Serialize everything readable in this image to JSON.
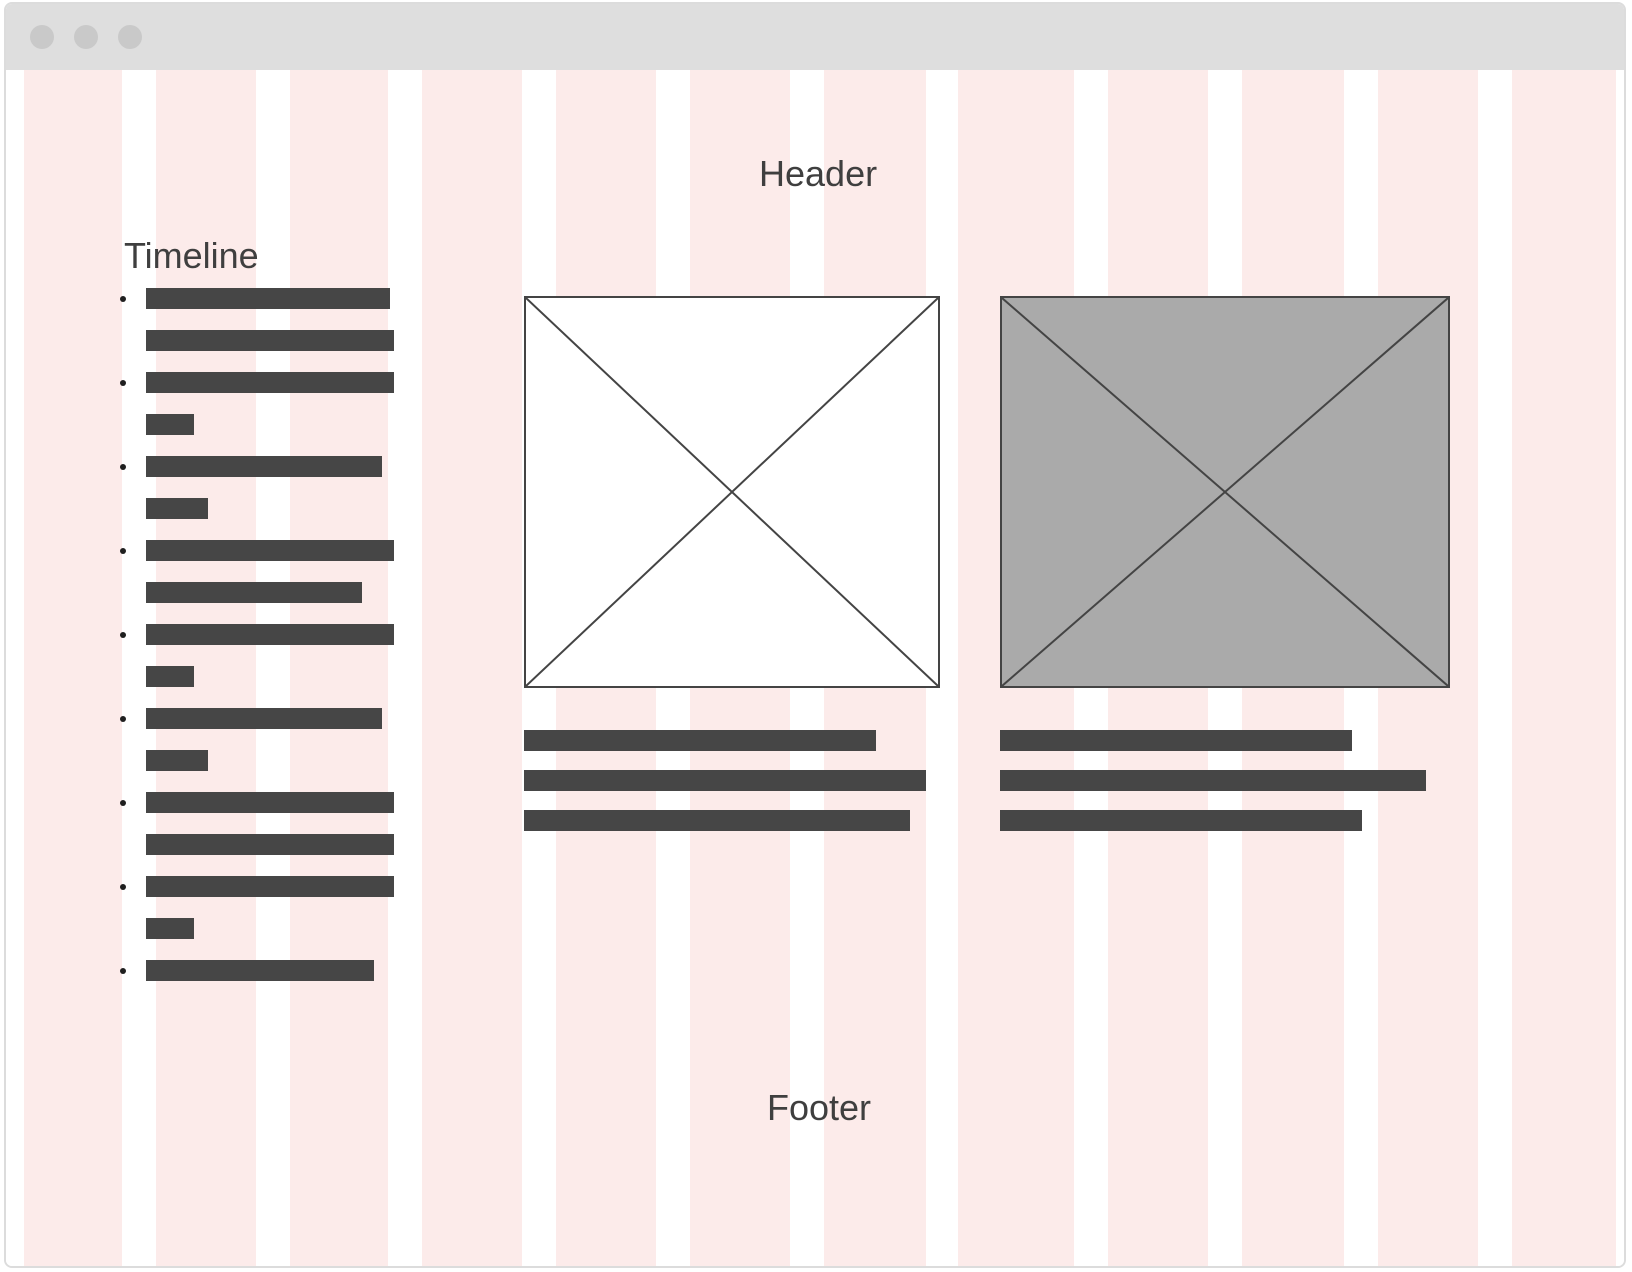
{
  "window": {
    "traffic_lights": [
      "close-dot",
      "minimize-dot",
      "zoom-dot"
    ]
  },
  "labels": {
    "header": "Header",
    "timeline": "Timeline",
    "footer": "Footer"
  },
  "timeline": {
    "entries": [
      {
        "lines": 2
      },
      {
        "lines": 2
      },
      {
        "lines": 2
      },
      {
        "lines": 2
      },
      {
        "lines": 2
      },
      {
        "lines": 2
      },
      {
        "lines": 2
      },
      {
        "lines": 2
      },
      {
        "lines": 1
      }
    ]
  },
  "cards": [
    {
      "image": "image-placeholder",
      "image_fill": "#ffffff",
      "text_lines": 3
    },
    {
      "image": "image-placeholder",
      "image_fill": "#aaaaaa",
      "text_lines": 3
    }
  ],
  "colors": {
    "grid_column": "#fcebea",
    "text_bar": "#464646",
    "titlebar": "#dedede",
    "label_text": "#3f3f3f"
  }
}
